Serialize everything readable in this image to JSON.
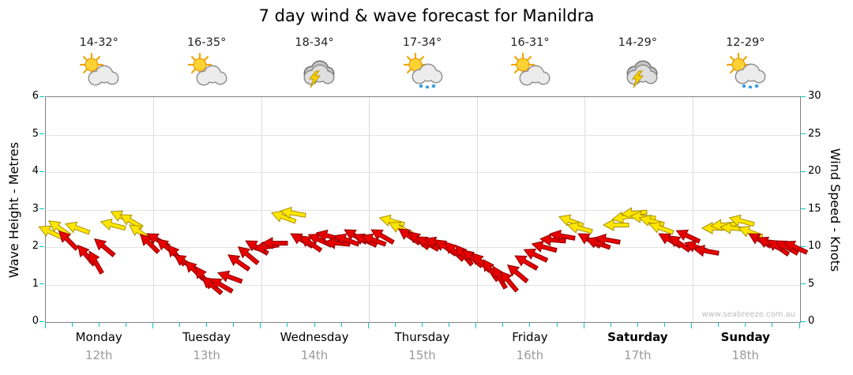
{
  "title": "7 day wind & wave forecast for Manildra",
  "watermark": "www.seabreeze.com.au",
  "axes": {
    "left_label": "Wave Height - Metres",
    "right_label": "Wind Speed - Knots",
    "left_ticks": [
      0,
      1,
      2,
      3,
      4,
      5,
      6
    ],
    "right_ticks": [
      0,
      5,
      10,
      15,
      20,
      25,
      30
    ]
  },
  "days": [
    {
      "name": "Monday",
      "date": "12th",
      "temp": "14-32°",
      "icon": "sun-cloud",
      "bold": false
    },
    {
      "name": "Tuesday",
      "date": "13th",
      "temp": "16-35°",
      "icon": "sun-cloud",
      "bold": false
    },
    {
      "name": "Wednesday",
      "date": "14th",
      "temp": "18-34°",
      "icon": "storm-cloud",
      "bold": false
    },
    {
      "name": "Thursday",
      "date": "15th",
      "temp": "17-34°",
      "icon": "sun-cloud-rain",
      "bold": false
    },
    {
      "name": "Friday",
      "date": "16th",
      "temp": "16-31°",
      "icon": "sun-cloud",
      "bold": false
    },
    {
      "name": "Saturday",
      "date": "17th",
      "temp": "14-29°",
      "icon": "storm-cloud",
      "bold": true
    },
    {
      "name": "Sunday",
      "date": "18th",
      "temp": "12-29°",
      "icon": "sun-cloud-rain",
      "bold": true
    }
  ],
  "chart_data": {
    "type": "wind-arrows",
    "title": "7 day wind & wave forecast for Manildra",
    "categories": [
      "Monday 12th",
      "Tuesday 13th",
      "Wednesday 14th",
      "Thursday 15th",
      "Friday 16th",
      "Saturday 17th",
      "Sunday 18th"
    ],
    "x_unit": "hours",
    "x_range": [
      0,
      168
    ],
    "wave_axis": {
      "label": "Wave Height - Metres",
      "range": [
        0,
        6
      ]
    },
    "wind_axis": {
      "label": "Wind Speed - Knots",
      "range": [
        0,
        30
      ]
    },
    "yellow_min_knots": 12,
    "colors": {
      "strong_fill": "#FFE600",
      "strong_stroke": "#A89000",
      "moderate_fill": "#E60000",
      "moderate_stroke": "#8F0000",
      "tick": "#00C8C8"
    },
    "points_format": [
      "hour",
      "knots",
      "direction_deg"
    ],
    "points": [
      [
        0,
        12,
        205
      ],
      [
        2,
        12.5,
        215
      ],
      [
        4,
        11,
        225
      ],
      [
        6,
        12.5,
        200
      ],
      [
        8,
        9,
        230
      ],
      [
        10,
        8,
        240
      ],
      [
        12,
        10,
        220
      ],
      [
        14,
        13,
        195
      ],
      [
        16,
        14,
        205
      ],
      [
        18,
        13.5,
        210
      ],
      [
        20,
        12,
        215
      ],
      [
        22,
        10.5,
        225
      ],
      [
        24,
        11,
        210
      ],
      [
        26,
        10,
        220
      ],
      [
        28,
        9,
        230
      ],
      [
        30,
        8,
        215
      ],
      [
        32,
        7,
        225
      ],
      [
        34,
        6,
        235
      ],
      [
        36,
        5,
        220
      ],
      [
        38,
        5,
        210
      ],
      [
        40,
        6,
        200
      ],
      [
        42,
        8,
        215
      ],
      [
        44,
        9,
        220
      ],
      [
        46,
        10,
        210
      ],
      [
        48,
        10,
        170
      ],
      [
        50,
        10.5,
        180
      ],
      [
        52,
        14,
        200
      ],
      [
        54,
        14.5,
        190
      ],
      [
        56,
        11,
        210
      ],
      [
        58,
        10.5,
        215
      ],
      [
        60,
        11,
        205
      ],
      [
        62,
        11.5,
        195
      ],
      [
        64,
        10.5,
        185
      ],
      [
        66,
        11,
        200
      ],
      [
        68,
        11.5,
        210
      ],
      [
        70,
        11,
        205
      ],
      [
        72,
        11,
        200
      ],
      [
        74,
        11.5,
        210
      ],
      [
        76,
        13.5,
        195
      ],
      [
        78,
        12.5,
        205
      ],
      [
        80,
        11.5,
        215
      ],
      [
        82,
        11,
        220
      ],
      [
        84,
        10.5,
        210
      ],
      [
        86,
        10.5,
        200
      ],
      [
        88,
        10,
        215
      ],
      [
        90,
        9.5,
        225
      ],
      [
        92,
        9,
        230
      ],
      [
        94,
        8.5,
        220
      ],
      [
        96,
        8,
        225
      ],
      [
        98,
        7,
        235
      ],
      [
        100,
        6,
        240
      ],
      [
        102,
        5.5,
        230
      ],
      [
        104,
        6.5,
        220
      ],
      [
        106,
        8,
        210
      ],
      [
        108,
        9,
        205
      ],
      [
        110,
        10,
        195
      ],
      [
        112,
        11,
        185
      ],
      [
        114,
        11.5,
        190
      ],
      [
        116,
        13.5,
        200
      ],
      [
        118,
        12.5,
        195
      ],
      [
        120,
        11,
        210
      ],
      [
        122,
        10.5,
        200
      ],
      [
        124,
        11,
        190
      ],
      [
        126,
        13,
        180
      ],
      [
        128,
        14,
        170
      ],
      [
        130,
        14.5,
        175
      ],
      [
        132,
        14,
        185
      ],
      [
        134,
        13.5,
        195
      ],
      [
        136,
        12.5,
        200
      ],
      [
        138,
        11,
        210
      ],
      [
        140,
        10.5,
        215
      ],
      [
        142,
        11.5,
        205
      ],
      [
        144,
        10,
        200
      ],
      [
        146,
        9.5,
        190
      ],
      [
        148,
        12.5,
        180
      ],
      [
        150,
        13,
        175
      ],
      [
        152,
        12.5,
        185
      ],
      [
        154,
        13.5,
        195
      ],
      [
        156,
        12,
        200
      ],
      [
        158,
        11,
        210
      ],
      [
        160,
        10.5,
        205
      ],
      [
        162,
        10,
        215
      ],
      [
        164,
        10,
        210
      ],
      [
        166,
        10,
        205
      ]
    ]
  }
}
